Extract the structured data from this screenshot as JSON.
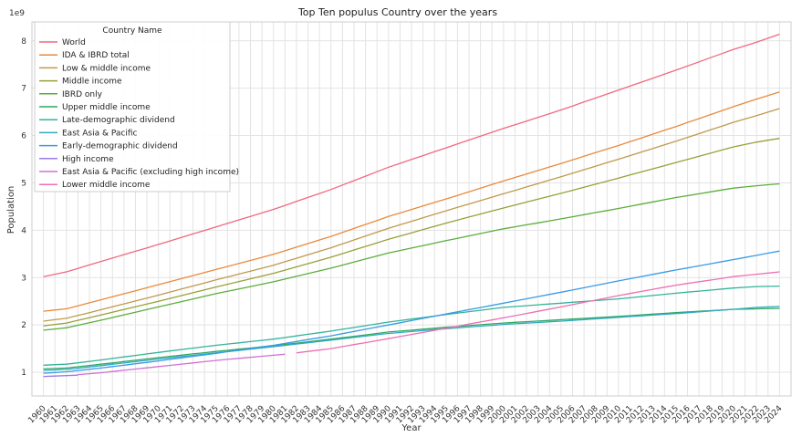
{
  "chart_data": {
    "type": "line",
    "title": "Top Ten populus Country over the years",
    "xlabel": "Year",
    "ylabel": "Population",
    "y_scale_label": "1e9",
    "ylim": [
      0.5,
      8.4
    ],
    "yticks": [
      1,
      2,
      3,
      4,
      5,
      6,
      7,
      8
    ],
    "grid": true,
    "legend_title": "Country Name",
    "legend_position": "top-left",
    "x": [
      1960,
      1961,
      1962,
      1963,
      1964,
      1965,
      1966,
      1967,
      1968,
      1969,
      1970,
      1971,
      1972,
      1973,
      1974,
      1975,
      1976,
      1977,
      1978,
      1979,
      1980,
      1981,
      1982,
      1983,
      1984,
      1985,
      1986,
      1987,
      1988,
      1989,
      1990,
      1991,
      1992,
      1993,
      1994,
      1995,
      1996,
      1997,
      1998,
      1999,
      2000,
      2001,
      2002,
      2003,
      2004,
      2005,
      2006,
      2007,
      2008,
      2009,
      2010,
      2011,
      2012,
      2013,
      2014,
      2015,
      2016,
      2017,
      2018,
      2019,
      2020,
      2021,
      2022,
      2023,
      2024
    ],
    "series": [
      {
        "name": "World",
        "color": "#f0697e",
        "anchors": [
          [
            1960,
            3.02
          ],
          [
            1962,
            3.12
          ],
          [
            1965,
            3.34
          ],
          [
            1970,
            3.7
          ],
          [
            1975,
            4.07
          ],
          [
            1980,
            4.44
          ],
          [
            1985,
            4.86
          ],
          [
            1990,
            5.33
          ],
          [
            1995,
            5.74
          ],
          [
            2000,
            6.15
          ],
          [
            2005,
            6.54
          ],
          [
            2010,
            6.96
          ],
          [
            2015,
            7.38
          ],
          [
            2020,
            7.82
          ],
          [
            2022,
            7.97
          ],
          [
            2024,
            8.14
          ]
        ]
      },
      {
        "name": "IDA & IBRD total",
        "color": "#e98a3c",
        "anchors": [
          [
            1960,
            2.29
          ],
          [
            1962,
            2.34
          ],
          [
            1965,
            2.53
          ],
          [
            1970,
            2.85
          ],
          [
            1975,
            3.17
          ],
          [
            1980,
            3.49
          ],
          [
            1985,
            3.87
          ],
          [
            1990,
            4.29
          ],
          [
            1995,
            4.66
          ],
          [
            2000,
            5.04
          ],
          [
            2005,
            5.41
          ],
          [
            2010,
            5.79
          ],
          [
            2015,
            6.19
          ],
          [
            2020,
            6.61
          ],
          [
            2022,
            6.77
          ],
          [
            2024,
            6.92
          ]
        ]
      },
      {
        "name": "Low & middle income",
        "color": "#bf9a4c",
        "anchors": [
          [
            1960,
            2.08
          ],
          [
            1962,
            2.14
          ],
          [
            1965,
            2.32
          ],
          [
            1970,
            2.63
          ],
          [
            1975,
            2.95
          ],
          [
            1980,
            3.26
          ],
          [
            1985,
            3.63
          ],
          [
            1990,
            4.04
          ],
          [
            1995,
            4.41
          ],
          [
            2000,
            4.77
          ],
          [
            2005,
            5.13
          ],
          [
            2010,
            5.5
          ],
          [
            2015,
            5.88
          ],
          [
            2020,
            6.28
          ],
          [
            2022,
            6.42
          ],
          [
            2024,
            6.57
          ]
        ]
      },
      {
        "name": "Middle income",
        "color": "#99a038",
        "anchors": [
          [
            1960,
            1.98
          ],
          [
            1962,
            2.04
          ],
          [
            1965,
            2.21
          ],
          [
            1970,
            2.5
          ],
          [
            1975,
            2.8
          ],
          [
            1980,
            3.09
          ],
          [
            1985,
            3.43
          ],
          [
            1990,
            3.81
          ],
          [
            1995,
            4.15
          ],
          [
            2000,
            4.47
          ],
          [
            2005,
            4.78
          ],
          [
            2010,
            5.1
          ],
          [
            2015,
            5.43
          ],
          [
            2020,
            5.76
          ],
          [
            2022,
            5.86
          ],
          [
            2024,
            5.94
          ]
        ]
      },
      {
        "name": "IBRD only",
        "color": "#5bae3c",
        "anchors": [
          [
            1960,
            1.89
          ],
          [
            1962,
            1.94
          ],
          [
            1965,
            2.1
          ],
          [
            1970,
            2.38
          ],
          [
            1975,
            2.66
          ],
          [
            1980,
            2.91
          ],
          [
            1985,
            3.2
          ],
          [
            1990,
            3.52
          ],
          [
            1995,
            3.78
          ],
          [
            2000,
            4.03
          ],
          [
            2005,
            4.24
          ],
          [
            2010,
            4.46
          ],
          [
            2015,
            4.69
          ],
          [
            2020,
            4.89
          ],
          [
            2022,
            4.94
          ],
          [
            2024,
            4.98
          ]
        ]
      },
      {
        "name": "Upper middle income",
        "color": "#2ea85f",
        "anchors": [
          [
            1960,
            1.07
          ],
          [
            1962,
            1.09
          ],
          [
            1965,
            1.17
          ],
          [
            1970,
            1.31
          ],
          [
            1975,
            1.44
          ],
          [
            1980,
            1.56
          ],
          [
            1985,
            1.7
          ],
          [
            1990,
            1.85
          ],
          [
            1995,
            1.95
          ],
          [
            2000,
            2.04
          ],
          [
            2005,
            2.11
          ],
          [
            2010,
            2.18
          ],
          [
            2015,
            2.26
          ],
          [
            2020,
            2.33
          ],
          [
            2022,
            2.34
          ],
          [
            2024,
            2.35
          ]
        ]
      },
      {
        "name": "Late-demographic dividend",
        "color": "#33b39a",
        "anchors": [
          [
            1960,
            1.15
          ],
          [
            1962,
            1.17
          ],
          [
            1965,
            1.26
          ],
          [
            1970,
            1.42
          ],
          [
            1975,
            1.57
          ],
          [
            1980,
            1.7
          ],
          [
            1985,
            1.87
          ],
          [
            1990,
            2.06
          ],
          [
            1995,
            2.22
          ],
          [
            2000,
            2.37
          ],
          [
            2005,
            2.46
          ],
          [
            2010,
            2.55
          ],
          [
            2015,
            2.67
          ],
          [
            2020,
            2.78
          ],
          [
            2022,
            2.81
          ],
          [
            2024,
            2.82
          ]
        ]
      },
      {
        "name": "East Asia & Pacific",
        "color": "#33a9c2",
        "anchors": [
          [
            1960,
            1.04
          ],
          [
            1962,
            1.06
          ],
          [
            1965,
            1.14
          ],
          [
            1970,
            1.28
          ],
          [
            1975,
            1.41
          ],
          [
            1980,
            1.54
          ],
          [
            1985,
            1.68
          ],
          [
            1990,
            1.82
          ],
          [
            1995,
            1.92
          ],
          [
            2000,
            2.01
          ],
          [
            2005,
            2.08
          ],
          [
            2010,
            2.16
          ],
          [
            2015,
            2.24
          ],
          [
            2020,
            2.33
          ],
          [
            2022,
            2.37
          ],
          [
            2024,
            2.39
          ]
        ]
      },
      {
        "name": "Early-demographic dividend",
        "color": "#3a9be5",
        "anchors": [
          [
            1960,
            0.98
          ],
          [
            1962,
            1.01
          ],
          [
            1965,
            1.09
          ],
          [
            1970,
            1.24
          ],
          [
            1975,
            1.4
          ],
          [
            1980,
            1.57
          ],
          [
            1985,
            1.77
          ],
          [
            1990,
            2.0
          ],
          [
            1995,
            2.23
          ],
          [
            2000,
            2.46
          ],
          [
            2005,
            2.69
          ],
          [
            2010,
            2.93
          ],
          [
            2015,
            3.16
          ],
          [
            2020,
            3.38
          ],
          [
            2022,
            3.47
          ],
          [
            2024,
            3.56
          ]
        ]
      },
      {
        "name": "High income",
        "color": "#9b7be6",
        "anchors": [
          [
            1960,
            0.91
          ],
          [
            1962,
            0.93
          ],
          [
            1963,
            0.94
          ]
        ]
      },
      {
        "name": "East Asia & Pacific (excluding high income)",
        "color": "#d36fd6",
        "anchors": [
          [
            1963,
            0.95
          ],
          [
            1965,
            0.99
          ],
          [
            1970,
            1.12
          ],
          [
            1975,
            1.25
          ],
          [
            1980,
            1.36
          ],
          [
            1981,
            1.38
          ]
        ]
      },
      {
        "name": "Lower middle income",
        "color": "#ee6fb4",
        "anchors": [
          [
            1982,
            1.41
          ],
          [
            1985,
            1.5
          ],
          [
            1990,
            1.71
          ],
          [
            1995,
            1.93
          ],
          [
            2000,
            2.15
          ],
          [
            2005,
            2.38
          ],
          [
            2010,
            2.62
          ],
          [
            2015,
            2.84
          ],
          [
            2020,
            3.02
          ],
          [
            2022,
            3.07
          ],
          [
            2024,
            3.12
          ]
        ]
      }
    ]
  }
}
